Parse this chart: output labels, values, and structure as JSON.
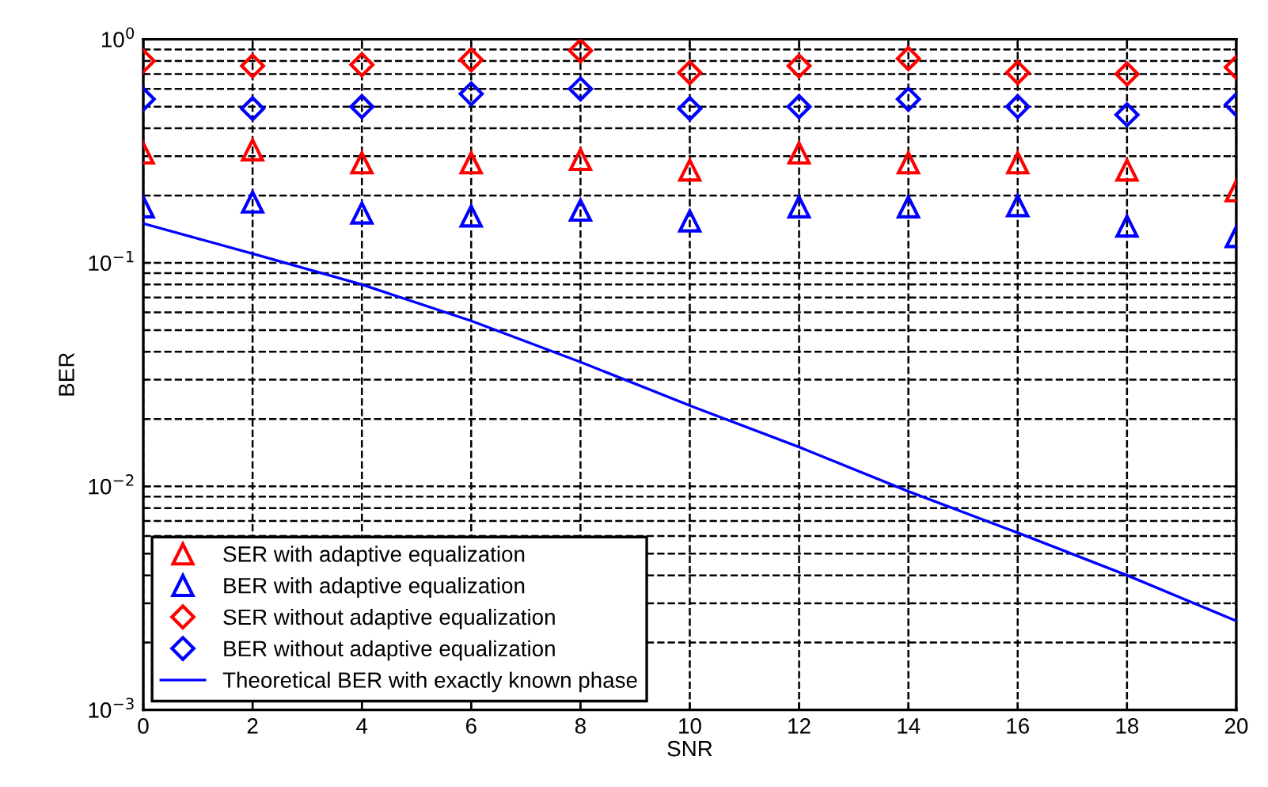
{
  "chart_data": {
    "type": "scatter",
    "xlabel": "SNR",
    "ylabel": "BER",
    "log": "y",
    "xlim": [
      0,
      20
    ],
    "xticks": [
      0,
      2,
      4,
      6,
      8,
      10,
      12,
      14,
      16,
      18,
      20
    ],
    "ylim": [
      0.001,
      1
    ],
    "yticks": [
      {
        "value": 0.001,
        "label": "10$^{−3}$"
      },
      {
        "value": 0.01,
        "label": "10$^{−2}$"
      },
      {
        "value": 0.1,
        "label": "10$^{−1}$"
      },
      {
        "value": 1,
        "label": "10$^{0}$"
      }
    ],
    "grid": true,
    "legend": "bottom left",
    "x": [
      0,
      2,
      4,
      6,
      8,
      10,
      12,
      14,
      16,
      18,
      20
    ],
    "series": [
      {
        "name": "SER with adaptive equalization",
        "color": "#ff0000",
        "marker": "triangle",
        "values": [
          0.31,
          0.32,
          0.28,
          0.28,
          0.29,
          0.26,
          0.31,
          0.28,
          0.28,
          0.26,
          0.21
        ]
      },
      {
        "name": "BER with adaptive equalization",
        "color": "#0000ff",
        "marker": "triangle",
        "values": [
          0.178,
          0.187,
          0.167,
          0.162,
          0.172,
          0.154,
          0.178,
          0.178,
          0.18,
          0.146,
          0.131
        ]
      },
      {
        "name": "SER without adaptive equalization",
        "color": "#ff0000",
        "marker": "diamond",
        "values": [
          0.8,
          0.76,
          0.77,
          0.81,
          0.89,
          0.71,
          0.76,
          0.82,
          0.71,
          0.7,
          0.75
        ]
      },
      {
        "name": "BER without adaptive equalization",
        "color": "#0000ff",
        "marker": "diamond",
        "values": [
          0.54,
          0.49,
          0.5,
          0.57,
          0.6,
          0.49,
          0.5,
          0.54,
          0.5,
          0.46,
          0.51
        ]
      },
      {
        "name": "Theoretical BER with exactly known phase",
        "color": "#0000ff",
        "type": "line",
        "marker": "none",
        "line_style": "solid",
        "values": [
          0.15,
          0.11,
          0.08,
          0.055,
          0.036,
          0.023,
          0.015,
          0.0095,
          0.0062,
          0.004,
          0.0025
        ]
      }
    ]
  }
}
